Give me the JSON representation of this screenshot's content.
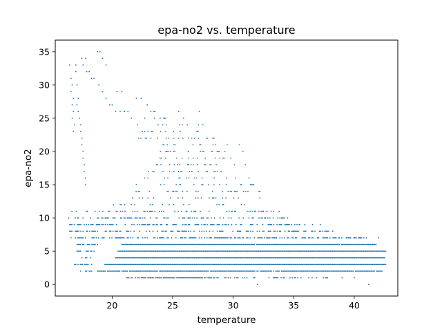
{
  "chart_data": {
    "type": "scatter",
    "title": "epa-no2 vs. temperature",
    "xlabel": "temperature",
    "ylabel": "epa-no2",
    "xlim": [
      15.3,
      43.6
    ],
    "ylim": [
      -1.75,
      36.75
    ],
    "xticks": [
      20,
      25,
      30,
      35,
      40
    ],
    "yticks": [
      0,
      5,
      10,
      15,
      20,
      25,
      30,
      35
    ],
    "grid": false,
    "legend": "none",
    "marker_color": "#1f77b4",
    "series": [
      {
        "bands": [
          {
            "y": 1,
            "x_min": 21.2,
            "x_max": 28.2,
            "density": 0.85
          },
          {
            "y": 1,
            "x_min": 28.3,
            "x_max": 37.8,
            "density": 0.35
          },
          {
            "y": 2,
            "x_min": 17.4,
            "x_max": 18.3,
            "density": 0.5
          },
          {
            "y": 2,
            "x_min": 18.8,
            "x_max": 42.3,
            "density": 0.98
          },
          {
            "y": 3,
            "x_min": 16.9,
            "x_max": 18.3,
            "density": 0.7
          },
          {
            "y": 3,
            "x_min": 19.4,
            "x_max": 42.6,
            "density": 1.0
          },
          {
            "y": 4,
            "x_min": 17.3,
            "x_max": 18.2,
            "density": 0.4
          },
          {
            "y": 4,
            "x_min": 20.3,
            "x_max": 42.5,
            "density": 1.0
          },
          {
            "y": 5,
            "x_min": 17.0,
            "x_max": 18.5,
            "density": 0.6
          },
          {
            "y": 5,
            "x_min": 20.5,
            "x_max": 42.6,
            "density": 1.0
          },
          {
            "y": 6,
            "x_min": 17.0,
            "x_max": 18.8,
            "density": 0.6
          },
          {
            "y": 6,
            "x_min": 20.8,
            "x_max": 41.8,
            "density": 0.98
          },
          {
            "y": 7,
            "x_min": 16.6,
            "x_max": 40.8,
            "density": 0.55
          },
          {
            "y": 8,
            "x_min": 16.5,
            "x_max": 38.5,
            "density": 0.5
          },
          {
            "y": 9,
            "x_min": 16.5,
            "x_max": 37.2,
            "density": 0.45
          },
          {
            "y": 10,
            "x_min": 16.4,
            "x_max": 34.5,
            "density": 0.35
          },
          {
            "y": 11,
            "x_min": 16.4,
            "x_max": 33.5,
            "density": 0.3
          },
          {
            "y": 12,
            "x_min": 19.2,
            "x_max": 31.5,
            "density": 0.2
          },
          {
            "y": 13,
            "x_min": 21.5,
            "x_max": 30.5,
            "density": 0.2
          },
          {
            "y": 14,
            "x_min": 21.8,
            "x_max": 32.5,
            "density": 0.18
          },
          {
            "y": 15,
            "x_min": 22.0,
            "x_max": 31.8,
            "density": 0.2
          },
          {
            "y": 16,
            "x_min": 22.5,
            "x_max": 31.0,
            "density": 0.18
          },
          {
            "y": 17,
            "x_min": 23.0,
            "x_max": 30.8,
            "density": 0.18
          },
          {
            "y": 18,
            "x_min": 23.2,
            "x_max": 30.2,
            "density": 0.2
          },
          {
            "y": 19,
            "x_min": 23.5,
            "x_max": 29.8,
            "density": 0.18
          },
          {
            "y": 20,
            "x_min": 23.8,
            "x_max": 29.5,
            "density": 0.18
          },
          {
            "y": 21,
            "x_min": 24.0,
            "x_max": 28.8,
            "density": 0.18
          },
          {
            "y": 22,
            "x_min": 22.2,
            "x_max": 28.5,
            "density": 0.15
          },
          {
            "y": 23,
            "x_min": 22.5,
            "x_max": 28.2,
            "density": 0.15
          },
          {
            "y": 24,
            "x_min": 22.8,
            "x_max": 27.5,
            "density": 0.15
          },
          {
            "y": 25,
            "x_min": 22.5,
            "x_max": 26.0,
            "density": 0.1
          },
          {
            "y": 26,
            "x_min": 20.2,
            "x_max": 24.0,
            "density": 0.1
          }
        ],
        "points": [
          [
            16.5,
            33
          ],
          [
            16.6,
            31
          ],
          [
            16.7,
            30
          ],
          [
            16.6,
            29
          ],
          [
            16.8,
            28
          ],
          [
            16.7,
            27
          ],
          [
            16.8,
            26
          ],
          [
            16.7,
            25
          ],
          [
            16.9,
            24
          ],
          [
            16.8,
            23
          ],
          [
            17.0,
            33
          ],
          [
            17.0,
            32
          ],
          [
            17.1,
            30
          ],
          [
            17.2,
            28
          ],
          [
            17.1,
            27
          ],
          [
            17.2,
            26
          ],
          [
            17.3,
            25
          ],
          [
            17.4,
            24
          ],
          [
            17.4,
            23
          ],
          [
            17.5,
            22
          ],
          [
            17.5,
            21
          ],
          [
            17.6,
            20
          ],
          [
            17.6,
            19
          ],
          [
            17.7,
            18
          ],
          [
            17.7,
            17
          ],
          [
            17.8,
            16
          ],
          [
            17.8,
            15
          ],
          [
            17.5,
            34
          ],
          [
            17.8,
            34
          ],
          [
            17.6,
            33
          ],
          [
            17.9,
            32
          ],
          [
            18.1,
            32
          ],
          [
            18.3,
            31
          ],
          [
            18.5,
            31
          ],
          [
            18.8,
            35
          ],
          [
            19.0,
            35
          ],
          [
            19.2,
            34
          ],
          [
            19.5,
            33
          ],
          [
            18.9,
            30
          ],
          [
            19.2,
            29
          ],
          [
            19.5,
            28
          ],
          [
            19.8,
            27
          ],
          [
            20.0,
            27
          ],
          [
            20.4,
            29
          ],
          [
            20.8,
            29
          ],
          [
            21.0,
            26
          ],
          [
            21.3,
            26
          ],
          [
            21.6,
            25
          ],
          [
            22.0,
            28
          ],
          [
            22.4,
            28
          ],
          [
            22.1,
            24
          ],
          [
            22.5,
            23
          ],
          [
            22.9,
            27
          ],
          [
            23.2,
            26
          ],
          [
            23.5,
            25
          ],
          [
            23.8,
            24
          ],
          [
            24.0,
            23
          ],
          [
            24.2,
            21
          ],
          [
            24.5,
            20
          ],
          [
            25.1,
            22
          ],
          [
            25.5,
            26
          ],
          [
            25.8,
            24
          ],
          [
            26.3,
            20
          ],
          [
            26.8,
            22
          ],
          [
            27.2,
            26
          ],
          [
            27.5,
            24
          ],
          [
            27.8,
            22
          ],
          [
            28.2,
            20
          ],
          [
            28.6,
            18
          ],
          [
            29.0,
            17
          ],
          [
            29.5,
            21
          ],
          [
            29.8,
            19
          ],
          [
            30.2,
            16
          ],
          [
            30.5,
            21
          ],
          [
            30.8,
            20
          ],
          [
            31.0,
            18
          ],
          [
            31.3,
            16
          ],
          [
            31.7,
            15
          ],
          [
            32.2,
            13
          ],
          [
            32.8,
            11
          ],
          [
            33.3,
            10
          ],
          [
            33.8,
            11
          ],
          [
            34.0,
            10
          ],
          [
            34.5,
            9
          ],
          [
            35.0,
            8
          ],
          [
            35.5,
            9
          ],
          [
            36.0,
            8
          ],
          [
            36.5,
            8
          ],
          [
            37.0,
            7
          ],
          [
            37.5,
            7
          ],
          [
            38.0,
            7
          ],
          [
            38.5,
            7
          ],
          [
            39.0,
            6
          ],
          [
            39.5,
            6
          ],
          [
            40.0,
            7
          ],
          [
            40.5,
            7
          ],
          [
            41.0,
            7
          ],
          [
            41.5,
            6
          ],
          [
            42.0,
            7
          ],
          [
            32.0,
            0
          ],
          [
            39.0,
            1
          ],
          [
            40.0,
            1
          ],
          [
            41.2,
            0
          ]
        ]
      }
    ]
  }
}
